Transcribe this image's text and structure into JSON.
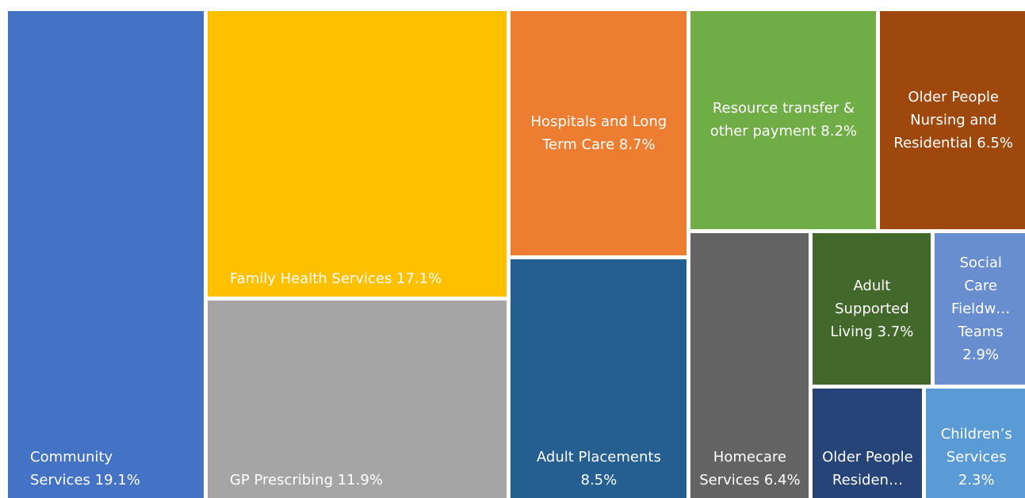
{
  "chart_data": {
    "type": "treemap",
    "categories": [
      "Community Services",
      "Family Health Services",
      "GP Prescribing",
      "Hospitals and Long Term Care",
      "Adult Placements",
      "Resource transfer & other payment",
      "Older People Nursing and Residential",
      "Homecare Services",
      "Adult Supported Living",
      "Social Care Fieldw… Teams",
      "Older People Residen…",
      "Children’s Services"
    ],
    "values": [
      19.1,
      17.1,
      11.9,
      8.7,
      8.5,
      8.2,
      6.5,
      6.4,
      3.7,
      2.9,
      2.5,
      2.3
    ],
    "value_labels": [
      "19.1%",
      "17.1%",
      "11.9%",
      "8.7%",
      "8.5%",
      "8.2%",
      "6.5%",
      "6.4%",
      "3.7%",
      "2.9%",
      null,
      "2.3%"
    ],
    "colors": [
      "#4472c4",
      "#ffc000",
      "#a5a5a5",
      "#ed7d31",
      "#255e91",
      "#70ad47",
      "#9e480e",
      "#636363",
      "#43682b",
      "#698ed0",
      "#264478",
      "#5b9bd5"
    ]
  }
}
